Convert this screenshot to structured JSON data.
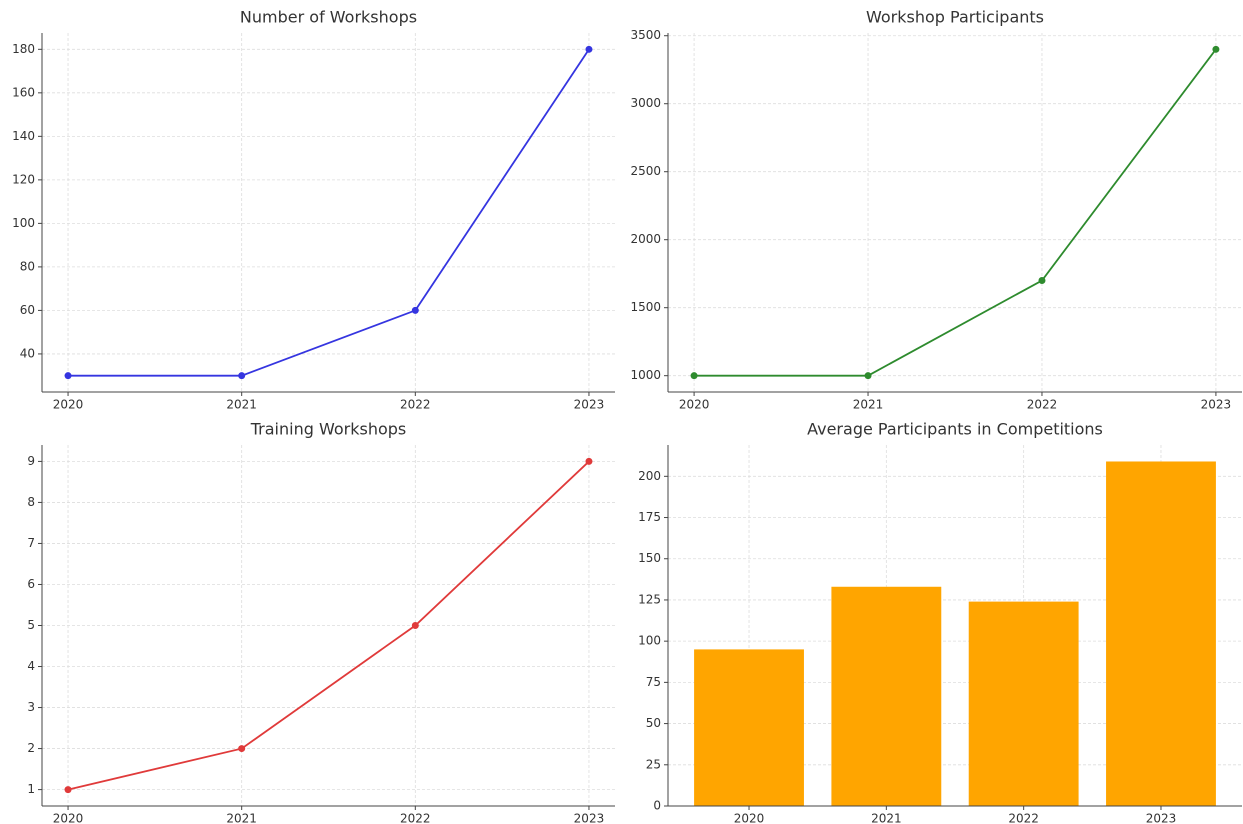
{
  "chart_data": [
    {
      "type": "line",
      "title": "Number of Workshops",
      "categories": [
        "2020",
        "2021",
        "2022",
        "2023"
      ],
      "series": [
        {
          "color": "#3535e0",
          "values": [
            30,
            30,
            60,
            180
          ]
        }
      ],
      "ylim": [
        22.5,
        187.5
      ],
      "yticks": [
        40,
        60,
        80,
        100,
        120,
        140,
        160,
        180
      ],
      "grid": true
    },
    {
      "type": "line",
      "title": "Workshop Participants",
      "categories": [
        "2020",
        "2021",
        "2022",
        "2023"
      ],
      "series": [
        {
          "color": "#2e8b2e",
          "values": [
            1000,
            1000,
            1700,
            3400
          ]
        }
      ],
      "ylim": [
        880,
        3520
      ],
      "yticks": [
        1000,
        1500,
        2000,
        2500,
        3000,
        3500
      ],
      "grid": true
    },
    {
      "type": "line",
      "title": "Training Workshops",
      "categories": [
        "2020",
        "2021",
        "2022",
        "2023"
      ],
      "series": [
        {
          "color": "#e03a3a",
          "values": [
            1,
            2,
            5,
            9
          ]
        }
      ],
      "ylim": [
        0.6,
        9.4
      ],
      "yticks": [
        1,
        2,
        3,
        4,
        5,
        6,
        7,
        8,
        9
      ],
      "grid": true
    },
    {
      "type": "bar",
      "title": "Average Participants in Competitions",
      "categories": [
        "2020",
        "2021",
        "2022",
        "2023"
      ],
      "series": [
        {
          "color": "#ffa500",
          "values": [
            95,
            133,
            124,
            209
          ]
        }
      ],
      "ylim": [
        0,
        219
      ],
      "yticks": [
        0,
        25,
        50,
        75,
        100,
        125,
        150,
        175,
        200
      ],
      "grid": true
    }
  ]
}
